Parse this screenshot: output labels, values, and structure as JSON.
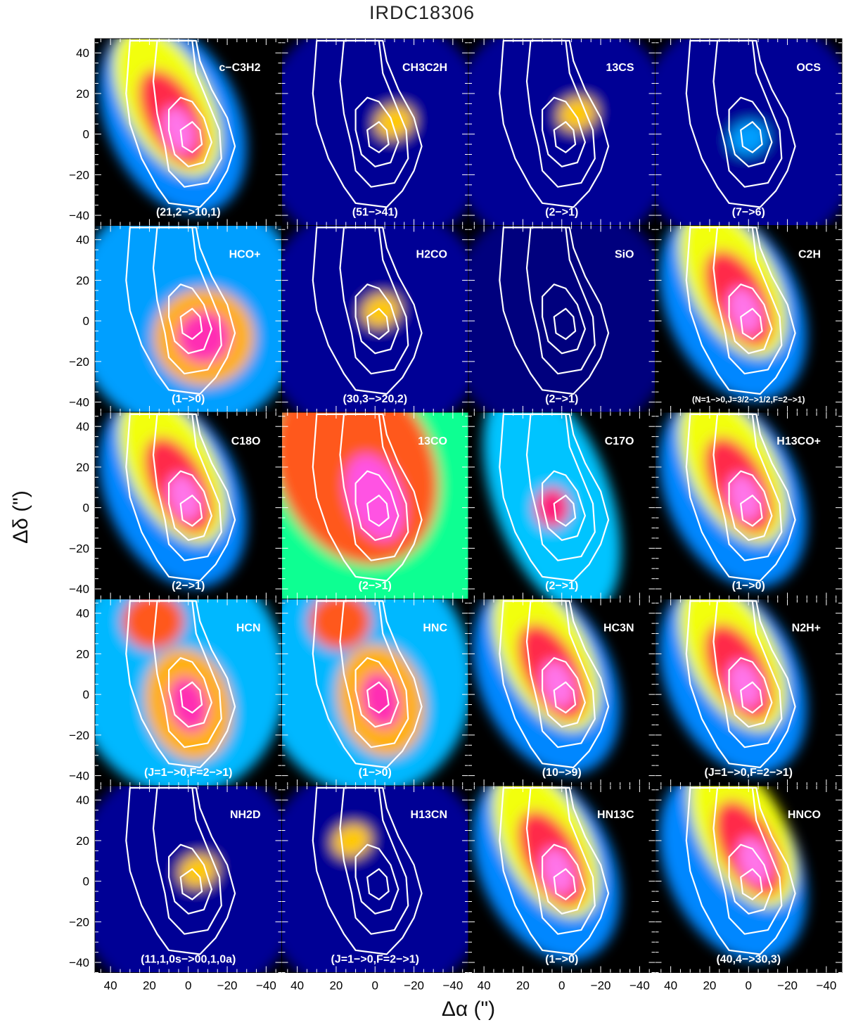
{
  "figure": {
    "title": "IRDC18306",
    "xlabel": "Δα (\")",
    "ylabel": "Δδ (\")"
  },
  "colors": {
    "contour_white": "#ffffff",
    "contour_black": "#000000",
    "contour_magenta": "#ff33ff",
    "colormap": [
      "#000000",
      "#00008c",
      "#0040ff",
      "#00c8ff",
      "#00ff9a",
      "#ffff00",
      "#ff7800",
      "#ff1060",
      "#ff40e0",
      "#ffffff"
    ]
  },
  "chart_data": {
    "type": "heatmap",
    "layout": "5 rows x 4 columns of channel maps",
    "xlim": [
      48,
      -48
    ],
    "ylim": [
      -45,
      47
    ],
    "x_ticks": [
      40,
      20,
      0,
      -20,
      -40
    ],
    "y_ticks": [
      40,
      20,
      0,
      -20,
      -40
    ],
    "x_tick_labels": [
      "40",
      "20",
      "0",
      "−20",
      "−40"
    ],
    "y_tick_labels": [
      "40",
      "20",
      "0",
      "−20",
      "−40"
    ],
    "panels": [
      {
        "molecule": "c−C3H2",
        "transition": "(21,2−>10,1)",
        "emission_peak": {
          "x": 5,
          "y": 2
        },
        "extent": "elongated NE-SW"
      },
      {
        "molecule": "CH3C2H",
        "transition": "(51−>41)",
        "emission_peak": {
          "x": -10,
          "y": 6
        },
        "extent": "compact weak"
      },
      {
        "molecule": "13CS",
        "transition": "(2−>1)",
        "emission_peak": {
          "x": -8,
          "y": 10
        },
        "extent": "compact weak"
      },
      {
        "molecule": "OCS",
        "transition": "(7−>6)",
        "emission_peak": {
          "x": 0,
          "y": -2
        },
        "extent": "very weak"
      },
      {
        "molecule": "HCO+",
        "transition": "(1−>0)",
        "emission_peak": {
          "x": -8,
          "y": -8
        },
        "extent": "round extended"
      },
      {
        "molecule": "H2CO",
        "transition": "(30,3−>20,2)",
        "emission_peak": {
          "x": -3,
          "y": 5
        },
        "extent": "compact weak"
      },
      {
        "molecule": "SiO",
        "transition": "(2−>1)",
        "emission_peak": null,
        "extent": "no emission"
      },
      {
        "molecule": "C2H",
        "transition": "(N=1−>0,J=3/2−>1/2,F=2−>1)",
        "emission_peak": {
          "x": 2,
          "y": 5
        },
        "extent": "elongated NE-SW"
      },
      {
        "molecule": "C18O",
        "transition": "(2−>1)",
        "emission_peak": {
          "x": 2,
          "y": 5
        },
        "extent": "elongated NE-SW"
      },
      {
        "molecule": "13CO",
        "transition": "(2−>1)",
        "emission_peak": {
          "x": 0,
          "y": 5
        },
        "extent": "widespread"
      },
      {
        "molecule": "C17O",
        "transition": "(2−>1)",
        "emission_peak": {
          "x": 5,
          "y": 0
        },
        "extent": "noisy"
      },
      {
        "molecule": "H13CO+",
        "transition": "(1−>0)",
        "emission_peak": {
          "x": 2,
          "y": 5
        },
        "extent": "elongated NE-SW"
      },
      {
        "molecule": "HCN",
        "transition": "(J=1−>0,F=2−>1)",
        "emission_peak": {
          "x": 0,
          "y": -5
        },
        "extent": "extended"
      },
      {
        "molecule": "HNC",
        "transition": "(1−>0)",
        "emission_peak": {
          "x": -3,
          "y": -3
        },
        "extent": "extended"
      },
      {
        "molecule": "HC3N",
        "transition": "(10−>9)",
        "emission_peak": {
          "x": 2,
          "y": 5
        },
        "extent": "elongated NE-SW"
      },
      {
        "molecule": "N2H+",
        "transition": "(J=1−>0,F=2−>1)",
        "emission_peak": {
          "x": 2,
          "y": 5
        },
        "extent": "elongated NE-SW"
      },
      {
        "molecule": "NH2D",
        "transition": "(11,1,0s−>00,1,0a)",
        "emission_peak": {
          "x": -5,
          "y": 5
        },
        "extent": "compact weak"
      },
      {
        "molecule": "H13CN",
        "transition": "(J=1−>0,F=2−>1)",
        "emission_peak": {
          "x": 12,
          "y": 20
        },
        "extent": "compact weak"
      },
      {
        "molecule": "HN13C",
        "transition": "(1−>0)",
        "emission_peak": {
          "x": 2,
          "y": 5
        },
        "extent": "elongated NE-SW"
      },
      {
        "molecule": "HNCO",
        "transition": "(40,4−>30,3)",
        "emission_peak": {
          "x": -3,
          "y": 10
        },
        "extent": "elongated NE-SW"
      }
    ]
  }
}
